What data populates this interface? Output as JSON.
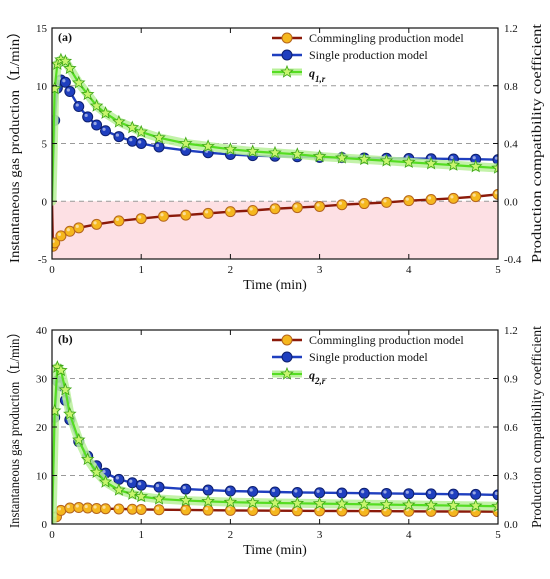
{
  "chart_data": [
    {
      "type": "line",
      "panel_label": "(a)",
      "xlabel": "Time (min)",
      "ylabel": "Instantaneous gas production（L/min）",
      "y2label": "Production compatibility coefficient",
      "xlim": [
        0,
        5
      ],
      "ylim": [
        -5,
        15
      ],
      "y2lim": [
        -0.4,
        1.2
      ],
      "xticks": [
        "0",
        "1",
        "2",
        "3",
        "4",
        "5"
      ],
      "yticks": [
        "-5",
        "0",
        "5",
        "10",
        "15"
      ],
      "y2ticks": [
        "-0.4",
        "0.0",
        "0.4",
        "0.8",
        "1.2"
      ],
      "shaded_band": {
        "axis": "y",
        "from": -5,
        "to": 0,
        "color": "#fde0e4"
      },
      "grid": "dashed horizontal lines at y = 0, 5, 10",
      "legend": "top-right",
      "series": [
        {
          "name": "Commingling production model",
          "line_color": "#8b1a0a",
          "marker_fill": "#f5b71e",
          "marker_edge": "#b5651d",
          "marker": "circle",
          "x": [
            0,
            0.01,
            0.03,
            0.1,
            0.2,
            0.3,
            0.5,
            0.75,
            1.0,
            1.25,
            1.5,
            1.75,
            2.0,
            2.25,
            2.5,
            2.75,
            3.0,
            3.25,
            3.5,
            3.75,
            4.0,
            4.25,
            4.5,
            4.75,
            5.0
          ],
          "values": [
            0,
            -3.9,
            -3.6,
            -3.0,
            -2.6,
            -2.3,
            -2.0,
            -1.7,
            -1.5,
            -1.3,
            -1.2,
            -1.05,
            -0.9,
            -0.8,
            -0.65,
            -0.55,
            -0.45,
            -0.3,
            -0.2,
            -0.1,
            0.05,
            0.15,
            0.25,
            0.4,
            0.6
          ]
        },
        {
          "name": "Single production model",
          "line_color": "#1f3fbf",
          "marker_fill": "#1f3fbf",
          "marker_edge": "#0d1f6e",
          "marker": "circle",
          "x": [
            0,
            0.03,
            0.06,
            0.1,
            0.15,
            0.2,
            0.3,
            0.4,
            0.5,
            0.6,
            0.75,
            0.9,
            1.0,
            1.2,
            1.5,
            1.75,
            2.0,
            2.25,
            2.5,
            2.75,
            3.0,
            3.25,
            3.5,
            3.75,
            4.0,
            4.25,
            4.5,
            4.75,
            5.0
          ],
          "values": [
            0,
            7.0,
            9.8,
            10.5,
            10.3,
            9.5,
            8.2,
            7.3,
            6.6,
            6.1,
            5.6,
            5.2,
            5.0,
            4.7,
            4.4,
            4.2,
            4.05,
            3.95,
            3.9,
            3.85,
            3.8,
            3.78,
            3.75,
            3.72,
            3.7,
            3.68,
            3.66,
            3.64,
            3.6
          ]
        },
        {
          "name": "q1,r",
          "axis": "right",
          "line_color": "#55dd22",
          "band_color": "#b8f09a",
          "marker": "star",
          "x": [
            0,
            0.03,
            0.06,
            0.1,
            0.15,
            0.2,
            0.3,
            0.4,
            0.5,
            0.6,
            0.75,
            0.9,
            1.0,
            1.2,
            1.5,
            1.75,
            2.0,
            2.25,
            2.5,
            2.75,
            3.0,
            3.25,
            3.5,
            3.75,
            4.0,
            4.25,
            4.5,
            4.75,
            5.0
          ],
          "values": [
            0,
            0.78,
            0.95,
            0.98,
            0.97,
            0.92,
            0.82,
            0.74,
            0.66,
            0.61,
            0.55,
            0.51,
            0.48,
            0.44,
            0.4,
            0.38,
            0.36,
            0.345,
            0.335,
            0.325,
            0.31,
            0.3,
            0.29,
            0.28,
            0.27,
            0.26,
            0.25,
            0.24,
            0.23
          ]
        }
      ]
    },
    {
      "type": "line",
      "panel_label": "(b)",
      "xlabel": "Time (min)",
      "ylabel": "Instantaneous gas production（L/min）",
      "y2label": "Production compatibility coefficient",
      "xlim": [
        0,
        5
      ],
      "ylim": [
        0,
        40
      ],
      "y2lim": [
        0,
        1.2
      ],
      "xticks": [
        "0",
        "1",
        "2",
        "3",
        "4",
        "5"
      ],
      "yticks": [
        "0",
        "10",
        "20",
        "30",
        "40"
      ],
      "y2ticks": [
        "0.0",
        "0.3",
        "0.6",
        "0.9",
        "1.2"
      ],
      "grid": "dashed horizontal lines at y = 10, 20, 30",
      "legend": "top-right",
      "series": [
        {
          "name": "Commingling production model",
          "line_color": "#8b1a0a",
          "marker_fill": "#f5b71e",
          "marker_edge": "#b5651d",
          "marker": "circle",
          "x": [
            0,
            0.05,
            0.1,
            0.2,
            0.3,
            0.4,
            0.5,
            0.6,
            0.75,
            0.9,
            1.0,
            1.2,
            1.5,
            1.75,
            2.0,
            2.25,
            2.5,
            2.75,
            3.0,
            3.25,
            3.5,
            3.75,
            4.0,
            4.25,
            4.5,
            4.75,
            5.0
          ],
          "values": [
            0,
            1.5,
            2.8,
            3.3,
            3.4,
            3.3,
            3.2,
            3.15,
            3.1,
            3.05,
            3.0,
            2.95,
            2.9,
            2.85,
            2.8,
            2.78,
            2.75,
            2.72,
            2.7,
            2.68,
            2.66,
            2.64,
            2.62,
            2.6,
            2.58,
            2.56,
            2.55
          ]
        },
        {
          "name": "Single production model",
          "line_color": "#1f3fbf",
          "marker_fill": "#1f3fbf",
          "marker_edge": "#0d1f6e",
          "marker": "circle",
          "x": [
            0,
            0.03,
            0.06,
            0.1,
            0.15,
            0.2,
            0.3,
            0.4,
            0.5,
            0.6,
            0.75,
            0.9,
            1.0,
            1.2,
            1.5,
            1.75,
            2.0,
            2.25,
            2.5,
            2.75,
            3.0,
            3.25,
            3.5,
            3.75,
            4.0,
            4.25,
            4.5,
            4.75,
            5.0
          ],
          "values": [
            0,
            22,
            29.5,
            28.5,
            25.5,
            21.5,
            17.0,
            14.0,
            12.0,
            10.5,
            9.2,
            8.5,
            8.0,
            7.6,
            7.2,
            7.0,
            6.8,
            6.7,
            6.6,
            6.5,
            6.45,
            6.4,
            6.35,
            6.3,
            6.25,
            6.2,
            6.15,
            6.1,
            6.0
          ]
        },
        {
          "name": "q2,r",
          "axis": "right",
          "line_color": "#55dd22",
          "band_color": "#b8f09a",
          "marker": "star",
          "x": [
            0,
            0.03,
            0.06,
            0.1,
            0.15,
            0.2,
            0.3,
            0.4,
            0.5,
            0.6,
            0.75,
            0.9,
            1.0,
            1.2,
            1.5,
            1.75,
            2.0,
            2.25,
            2.5,
            2.75,
            3.0,
            3.25,
            3.5,
            3.75,
            4.0,
            4.25,
            4.5,
            4.75,
            5.0
          ],
          "values": [
            0,
            0.7,
            0.97,
            0.95,
            0.83,
            0.68,
            0.52,
            0.4,
            0.32,
            0.26,
            0.21,
            0.185,
            0.17,
            0.155,
            0.145,
            0.14,
            0.135,
            0.132,
            0.13,
            0.128,
            0.126,
            0.124,
            0.122,
            0.12,
            0.118,
            0.116,
            0.114,
            0.112,
            0.11
          ]
        }
      ]
    }
  ]
}
